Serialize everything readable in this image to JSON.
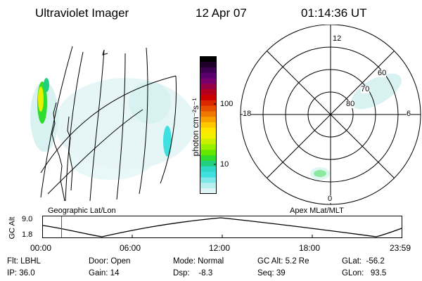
{
  "header": {
    "instrument": "Ultraviolet Imager",
    "date": "12 Apr 07",
    "time": "01:14:36 UT"
  },
  "colorbar": {
    "label": "photon cm⁻²s⁻¹",
    "ticks": [
      "100",
      "10"
    ],
    "colors": [
      "#000000",
      "#1e0028",
      "#3c0050",
      "#5a006e",
      "#78006e",
      "#960046",
      "#b4001e",
      "#cc0000",
      "#dc2800",
      "#e85000",
      "#f07800",
      "#f8a000",
      "#ffc800",
      "#ffe600",
      "#f0f000",
      "#c8f000",
      "#96f000",
      "#64e800",
      "#30dc30",
      "#20d080",
      "#30d8c8",
      "#40e0e0",
      "#80e8e8",
      "#b8f0f0",
      "#e0f6f6"
    ]
  },
  "polar": {
    "mlt_labels": {
      "top": "12",
      "bottom": "0",
      "left": "18",
      "right": "6"
    },
    "lat_labels": [
      "60",
      "70",
      "80"
    ]
  },
  "panel_labels": {
    "left": "Geographic Lat/Lon",
    "right": "Apex MLat/MLT"
  },
  "orbit": {
    "ylabel": "GC Alt",
    "yticks": [
      "9.0",
      "1.8"
    ],
    "xticks": [
      "00:00",
      "06:00",
      "12:00",
      "18:00",
      "23:59"
    ],
    "current_time_fraction": 0.052
  },
  "info": {
    "flt": "Flt: LBHL",
    "ip": "IP: 36.0",
    "door": "Door: Open",
    "gain": "Gain: 14",
    "mode": "Mode: Normal",
    "dsp": "Dsp:    -8.3",
    "gcalt": "GC Alt: 5.2 Re",
    "seq": "Seq: 39",
    "glat": "GLat:  -56.2",
    "glon": "GLon:   93.5"
  }
}
